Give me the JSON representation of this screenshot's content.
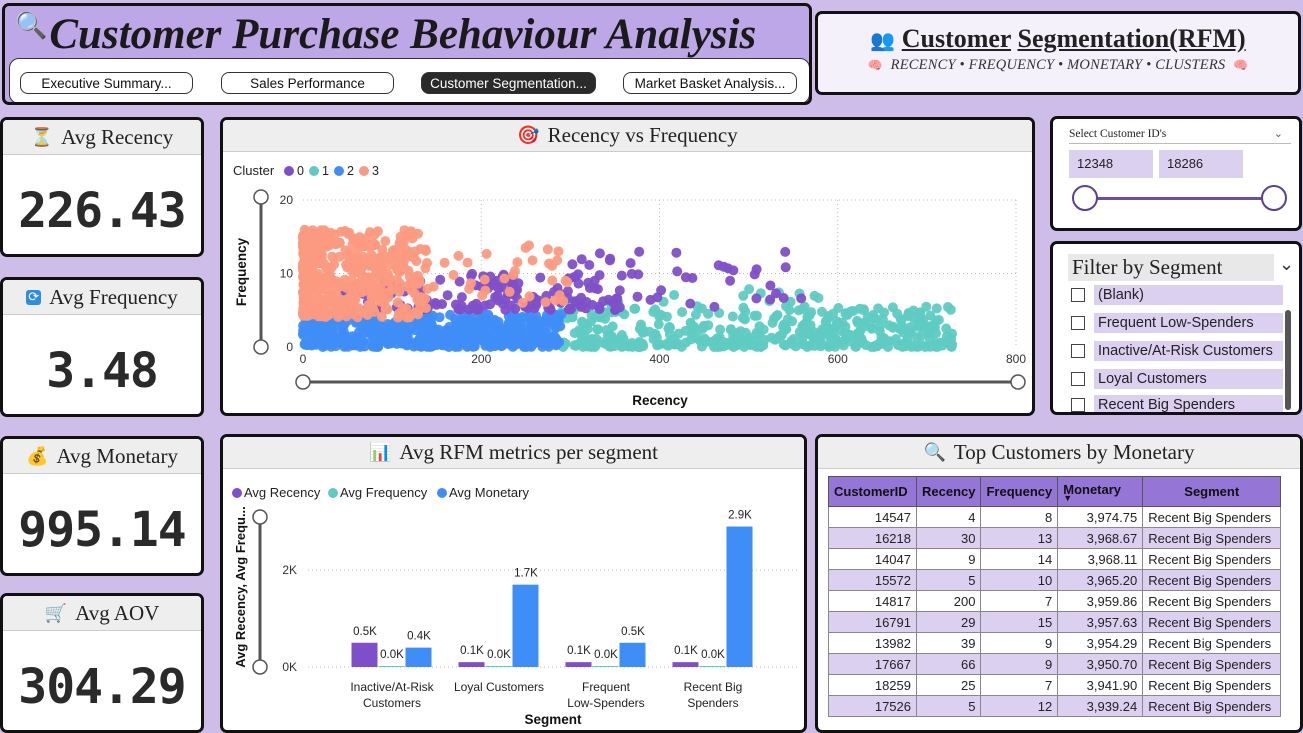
{
  "header": {
    "title": "Customer Purchase Behaviour Analysis",
    "nav": [
      {
        "label": "Executive Summary..."
      },
      {
        "label": "Sales Performance"
      },
      {
        "label": "Customer Segmentation..."
      },
      {
        "label": "Market Basket Analysis..."
      }
    ],
    "active_nav": 2
  },
  "segment_card": {
    "title_word1": "Customer",
    "title_word2": "Segmentation(RFM)",
    "subtitle": "RECENCY • FREQUENCY • MONETARY • CLUSTERS"
  },
  "kpis": [
    {
      "label": "Avg Recency",
      "value": "226.43",
      "icon": "hourglass-icon"
    },
    {
      "label": "Avg Frequency",
      "value": "3.48",
      "icon": "repeat-icon"
    },
    {
      "label": "Avg Monetary",
      "value": "995.14",
      "icon": "money-bag-icon"
    },
    {
      "label": "Avg AOV",
      "value": "304.29",
      "icon": "shopping-cart-icon"
    }
  ],
  "colors": {
    "cluster0": "#7f4fc9",
    "cluster1": "#5ecbc2",
    "cluster2": "#3f8ef7",
    "cluster3": "#fb9a80",
    "accent": "#9575d6",
    "slicer_fill": "#dcd0f1"
  },
  "scatter": {
    "title": "Recency vs Frequency",
    "icon": "target-icon",
    "legend_title": "Cluster",
    "legend": [
      "0",
      "1",
      "2",
      "3"
    ],
    "xlabel": "Recency",
    "ylabel": "Frequency",
    "x_ticks": [
      "0",
      "200",
      "400",
      "600",
      "800"
    ],
    "y_ticks": [
      "0",
      "10",
      "20"
    ]
  },
  "id_slicer": {
    "label": "Select Customer ID's",
    "min": "12348",
    "max": "18286"
  },
  "segment_slicer": {
    "title": "Filter by Segment",
    "items": [
      "(Blank)",
      "Frequent Low-Spenders",
      "Inactive/At-Risk Customers",
      "Loyal Customers",
      "Recent Big Spenders"
    ]
  },
  "bar_chart": {
    "title": "Avg RFM metrics per segment",
    "icon": "bar-chart-icon",
    "legend": [
      "Avg Recency",
      "Avg Frequency",
      "Avg Monetary"
    ],
    "ylabel": "Avg Recency, Avg Frequ...",
    "xlabel": "Segment",
    "y_ticks": [
      "0K",
      "2K"
    ]
  },
  "chart_data": [
    {
      "type": "scatter",
      "title": "Recency vs Frequency",
      "xlabel": "Recency",
      "ylabel": "Frequency",
      "xlim": [
        0,
        800
      ],
      "ylim": [
        0,
        20
      ],
      "legend_title": "Cluster",
      "series": [
        {
          "name": "0",
          "x_range": [
            0,
            560
          ],
          "y_range": [
            5,
            14
          ]
        },
        {
          "name": "1",
          "x_range": [
            290,
            740
          ],
          "y_range": [
            0,
            8
          ]
        },
        {
          "name": "2",
          "x_range": [
            0,
            290
          ],
          "y_range": [
            0,
            5
          ]
        },
        {
          "name": "3",
          "x_range": [
            0,
            300
          ],
          "y_range": [
            4,
            16
          ]
        }
      ]
    },
    {
      "type": "bar",
      "title": "Avg RFM metrics per segment",
      "xlabel": "Segment",
      "ylabel": "Avg Recency, Avg Frequ...",
      "ylim": [
        0,
        3200
      ],
      "categories": [
        "Inactive/At-Risk Customers",
        "Loyal Customers",
        "Frequent Low-Spenders",
        "Recent Big Spenders"
      ],
      "series": [
        {
          "name": "Avg Recency",
          "values": [
            500,
            100,
            100,
            100
          ],
          "labels": [
            "0.5K",
            "0.1K",
            "0.1K",
            "0.1K"
          ]
        },
        {
          "name": "Avg Frequency",
          "values": [
            0,
            0,
            0,
            0
          ],
          "labels": [
            "0.0K",
            "0.0K",
            "0.0K",
            "0.0K"
          ]
        },
        {
          "name": "Avg Monetary",
          "values": [
            400,
            1700,
            500,
            2900
          ],
          "labels": [
            "0.4K",
            "1.7K",
            "0.5K",
            "2.9K"
          ]
        }
      ]
    }
  ],
  "top_customers": {
    "title": "Top Customers by Monetary",
    "icon": "magnifier-icon",
    "columns": [
      "CustomerID",
      "Recency",
      "Frequency",
      "Monetary",
      "Segment"
    ],
    "rows": [
      [
        "14547",
        "4",
        "8",
        "3,974.75",
        "Recent Big Spenders"
      ],
      [
        "16218",
        "30",
        "13",
        "3,968.67",
        "Recent Big Spenders"
      ],
      [
        "14047",
        "9",
        "14",
        "3,968.11",
        "Recent Big Spenders"
      ],
      [
        "15572",
        "5",
        "10",
        "3,965.20",
        "Recent Big Spenders"
      ],
      [
        "14817",
        "200",
        "7",
        "3,959.86",
        "Recent Big Spenders"
      ],
      [
        "16791",
        "29",
        "15",
        "3,957.63",
        "Recent Big Spenders"
      ],
      [
        "13982",
        "39",
        "9",
        "3,954.29",
        "Recent Big Spenders"
      ],
      [
        "17667",
        "66",
        "9",
        "3,950.70",
        "Recent Big Spenders"
      ],
      [
        "18259",
        "25",
        "7",
        "3,941.90",
        "Recent Big Spenders"
      ],
      [
        "17526",
        "5",
        "12",
        "3,939.24",
        "Recent Big Spenders"
      ]
    ]
  }
}
